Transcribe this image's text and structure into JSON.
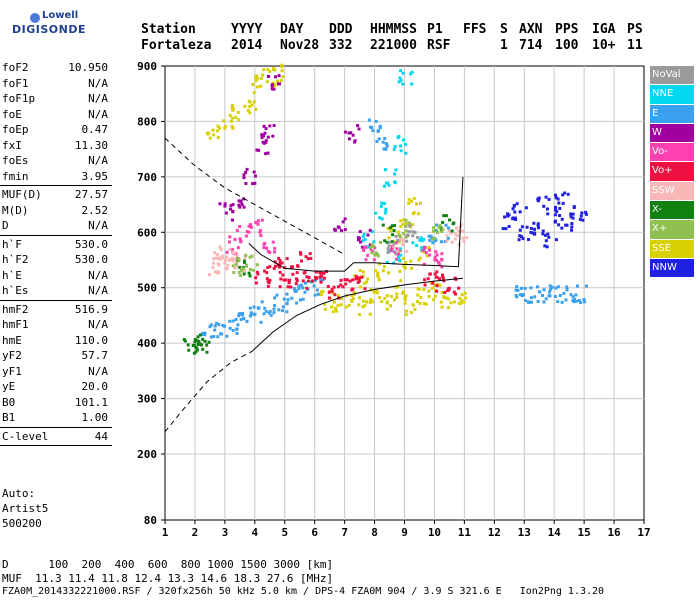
{
  "logo": {
    "line1": "Lowell",
    "line2": "DIGISONDE"
  },
  "header": {
    "labels": [
      "Station",
      "YYYY",
      "DAY",
      "DDD",
      "HHMMSS",
      "P1",
      "FFS",
      "S",
      "AXN",
      "PPS",
      "IGA",
      "PS"
    ],
    "values": [
      "Fortaleza",
      "2014",
      "Nov28",
      "332",
      "221000",
      "RSF",
      "",
      "1",
      "714",
      "100",
      "10+",
      "11"
    ]
  },
  "params_group1": [
    {
      "k": "foF2",
      "v": "10.950"
    },
    {
      "k": "foF1",
      "v": "N/A"
    },
    {
      "k": "foF1p",
      "v": "N/A"
    },
    {
      "k": "foE",
      "v": "N/A"
    },
    {
      "k": "foEp",
      "v": "0.47"
    },
    {
      "k": "fxI",
      "v": "11.30"
    },
    {
      "k": "foEs",
      "v": "N/A"
    },
    {
      "k": "fmin",
      "v": "3.95"
    }
  ],
  "params_group2": [
    {
      "k": "MUF(D)",
      "v": "27.57"
    },
    {
      "k": "M(D)",
      "v": "2.52"
    },
    {
      "k": "D",
      "v": "N/A"
    }
  ],
  "params_group3": [
    {
      "k": "h`F",
      "v": "530.0"
    },
    {
      "k": "h`F2",
      "v": "530.0"
    },
    {
      "k": "h`E",
      "v": "N/A"
    },
    {
      "k": "h`Es",
      "v": "N/A"
    }
  ],
  "params_group4": [
    {
      "k": "hmF2",
      "v": "516.9"
    },
    {
      "k": "hmF1",
      "v": "N/A"
    },
    {
      "k": "hmE",
      "v": "110.0"
    },
    {
      "k": "yF2",
      "v": "57.7"
    },
    {
      "k": "yF1",
      "v": "N/A"
    },
    {
      "k": "yE",
      "v": "20.0"
    },
    {
      "k": "B0",
      "v": "101.1"
    },
    {
      "k": "B1",
      "v": "1.00"
    }
  ],
  "params_group5": [
    {
      "k": "C-level",
      "v": "44"
    }
  ],
  "auto": {
    "line1": "Auto:",
    "line2": "Artist5",
    "line3": "500200"
  },
  "legend": [
    {
      "label": "NoVal",
      "color": "#9a9a9a"
    },
    {
      "label": "NNE",
      "color": "#00d8f0"
    },
    {
      "label": "E",
      "color": "#3aa0f0"
    },
    {
      "label": "W",
      "color": "#a000a0"
    },
    {
      "label": "Vo-",
      "color": "#ff40b0"
    },
    {
      "label": "Vo+",
      "color": "#ee1040"
    },
    {
      "label": "SSW",
      "color": "#f8b8b8"
    },
    {
      "label": "X-",
      "color": "#108010"
    },
    {
      "label": "X+",
      "color": "#90c050"
    },
    {
      "label": "SSE",
      "color": "#d8d000"
    },
    {
      "label": "NNW",
      "color": "#2020e0"
    }
  ],
  "footer": {
    "line1": "D      100  200  400  600  800 1000 1500 3000 [km]",
    "line2": "MUF  11.3 11.4 11.8 12.4 13.3 14.6 18.3 27.6 [MHz]",
    "line3": "FZA0M_2014332221000.RSF / 320fx256h 50 kHz 5.0 km / DPS-4 FZA0M 904 / 3.9 S 321.6 E   Ion2Png 1.3.20"
  },
  "chart_data": {
    "type": "scatter",
    "xlabel": "",
    "ylabel": "",
    "xlim": [
      1,
      17
    ],
    "ylim": [
      80,
      900
    ],
    "x_ticks": [
      1,
      2,
      3,
      4,
      5,
      6,
      7,
      8,
      9,
      10,
      11,
      12,
      13,
      14,
      15,
      16,
      17
    ],
    "y_ticks": [
      80,
      200,
      300,
      400,
      500,
      600,
      700,
      800,
      900
    ],
    "grid": true,
    "series": [
      {
        "name": "SSE",
        "color": "#d8d000",
        "points": [
          [
            7.2,
            480
          ],
          [
            7.6,
            470
          ],
          [
            8.0,
            490
          ],
          [
            8.4,
            475
          ],
          [
            8.8,
            500
          ],
          [
            9.2,
            470
          ],
          [
            9.6,
            485
          ],
          [
            10.0,
            495
          ],
          [
            10.4,
            480
          ],
          [
            10.8,
            490
          ],
          [
            7.5,
            520
          ],
          [
            8.2,
            530
          ],
          [
            9.0,
            540
          ],
          [
            9.6,
            560
          ],
          [
            8.6,
            600
          ],
          [
            9.0,
            620
          ],
          [
            9.3,
            650
          ],
          [
            4.0,
            870
          ],
          [
            4.4,
            880
          ],
          [
            4.8,
            890
          ],
          [
            3.4,
            820
          ],
          [
            3.8,
            830
          ],
          [
            2.6,
            780
          ],
          [
            3.0,
            800
          ],
          [
            6.8,
            475
          ],
          [
            6.4,
            480
          ]
        ]
      },
      {
        "name": "E",
        "color": "#3aa0f0",
        "points": [
          [
            2.4,
            420
          ],
          [
            2.8,
            428
          ],
          [
            3.2,
            436
          ],
          [
            3.6,
            445
          ],
          [
            4.0,
            455
          ],
          [
            4.4,
            465
          ],
          [
            4.8,
            475
          ],
          [
            5.2,
            485
          ],
          [
            5.6,
            495
          ],
          [
            6.0,
            503
          ],
          [
            8.0,
            800
          ],
          [
            8.2,
            760
          ],
          [
            9.8,
            585
          ],
          [
            10.2,
            600
          ],
          [
            12.8,
            490
          ],
          [
            13.2,
            492
          ],
          [
            13.6,
            490
          ],
          [
            14.0,
            492
          ],
          [
            14.4,
            490
          ],
          [
            14.8,
            490
          ]
        ]
      },
      {
        "name": "NNE",
        "color": "#00d8f0",
        "points": [
          [
            7.8,
            590
          ],
          [
            8.1,
            640
          ],
          [
            8.5,
            700
          ],
          [
            8.8,
            760
          ],
          [
            9.0,
            880
          ],
          [
            8.6,
            560
          ],
          [
            9.4,
            580
          ]
        ]
      },
      {
        "name": "NNW",
        "color": "#2020e0",
        "points": [
          [
            12.4,
            620
          ],
          [
            12.8,
            640
          ],
          [
            13.2,
            610
          ],
          [
            13.6,
            650
          ],
          [
            14.0,
            630
          ],
          [
            14.4,
            620
          ],
          [
            14.8,
            640
          ],
          [
            13.0,
            600
          ],
          [
            13.8,
            590
          ],
          [
            14.2,
            660
          ]
        ]
      },
      {
        "name": "Vo+",
        "color": "#ee1040",
        "points": [
          [
            4.2,
            520
          ],
          [
            4.6,
            530
          ],
          [
            5.0,
            510
          ],
          [
            5.4,
            525
          ],
          [
            5.8,
            515
          ],
          [
            6.2,
            520
          ],
          [
            6.6,
            500
          ],
          [
            7.0,
            505
          ],
          [
            7.4,
            515
          ],
          [
            9.8,
            520
          ],
          [
            10.2,
            510
          ],
          [
            10.6,
            505
          ],
          [
            4.8,
            540
          ],
          [
            5.6,
            550
          ]
        ]
      },
      {
        "name": "W",
        "color": "#a000a0",
        "points": [
          [
            3.0,
            640
          ],
          [
            3.4,
            660
          ],
          [
            3.8,
            700
          ],
          [
            4.2,
            760
          ],
          [
            4.4,
            780
          ],
          [
            4.6,
            870
          ],
          [
            7.2,
            780
          ],
          [
            6.8,
            620
          ],
          [
            7.6,
            590
          ]
        ]
      },
      {
        "name": "Vo-",
        "color": "#ff40b0",
        "points": [
          [
            3.2,
            580
          ],
          [
            3.6,
            600
          ],
          [
            4.0,
            610
          ],
          [
            4.4,
            580
          ],
          [
            7.8,
            560
          ],
          [
            8.6,
            570
          ],
          [
            9.8,
            560
          ],
          [
            10.2,
            555
          ]
        ]
      },
      {
        "name": "SSW",
        "color": "#f8b8b8",
        "points": [
          [
            2.6,
            540
          ],
          [
            2.8,
            555
          ],
          [
            3.0,
            560
          ],
          [
            3.2,
            550
          ],
          [
            3.4,
            545
          ],
          [
            10.6,
            590
          ],
          [
            10.8,
            600
          ],
          [
            8.8,
            580
          ]
        ]
      },
      {
        "name": "X-",
        "color": "#108010",
        "points": [
          [
            1.8,
            400
          ],
          [
            2.0,
            401
          ],
          [
            2.2,
            402
          ],
          [
            3.6,
            540
          ],
          [
            8.4,
            600
          ],
          [
            10.4,
            620
          ]
        ]
      },
      {
        "name": "X+",
        "color": "#90c050",
        "points": [
          [
            3.4,
            540
          ],
          [
            3.8,
            545
          ],
          [
            8.0,
            575
          ],
          [
            9.0,
            610
          ],
          [
            10.0,
            605
          ]
        ]
      },
      {
        "name": "NoVal",
        "color": "#9a9a9a",
        "points": [
          [
            8.6,
            580
          ],
          [
            9.2,
            600
          ]
        ]
      }
    ],
    "profile_solid": [
      [
        3.8,
        580
      ],
      [
        4.2,
        560
      ],
      [
        5.0,
        535
      ],
      [
        6.0,
        530
      ],
      [
        7.0,
        530
      ],
      [
        7.3,
        545
      ],
      [
        8.0,
        545
      ],
      [
        9.0,
        542
      ],
      [
        10.0,
        540
      ],
      [
        10.8,
        538
      ],
      [
        10.95,
        700
      ]
    ],
    "profile_solid_lower": [
      [
        3.9,
        385
      ],
      [
        4.6,
        420
      ],
      [
        5.4,
        450
      ],
      [
        6.2,
        470
      ],
      [
        7.0,
        485
      ],
      [
        8.0,
        497
      ],
      [
        9.0,
        505
      ],
      [
        10.0,
        512
      ],
      [
        10.95,
        517
      ]
    ],
    "profile_dashed": [
      [
        1.0,
        770
      ],
      [
        2.0,
        720
      ],
      [
        3.0,
        680
      ],
      [
        4.0,
        650
      ],
      [
        5.0,
        620
      ],
      [
        6.0,
        590
      ],
      [
        7.0,
        560
      ]
    ],
    "profile_dashed_lower": [
      [
        1.0,
        240
      ],
      [
        1.6,
        280
      ],
      [
        2.4,
        330
      ],
      [
        3.2,
        365
      ],
      [
        3.9,
        385
      ]
    ]
  }
}
